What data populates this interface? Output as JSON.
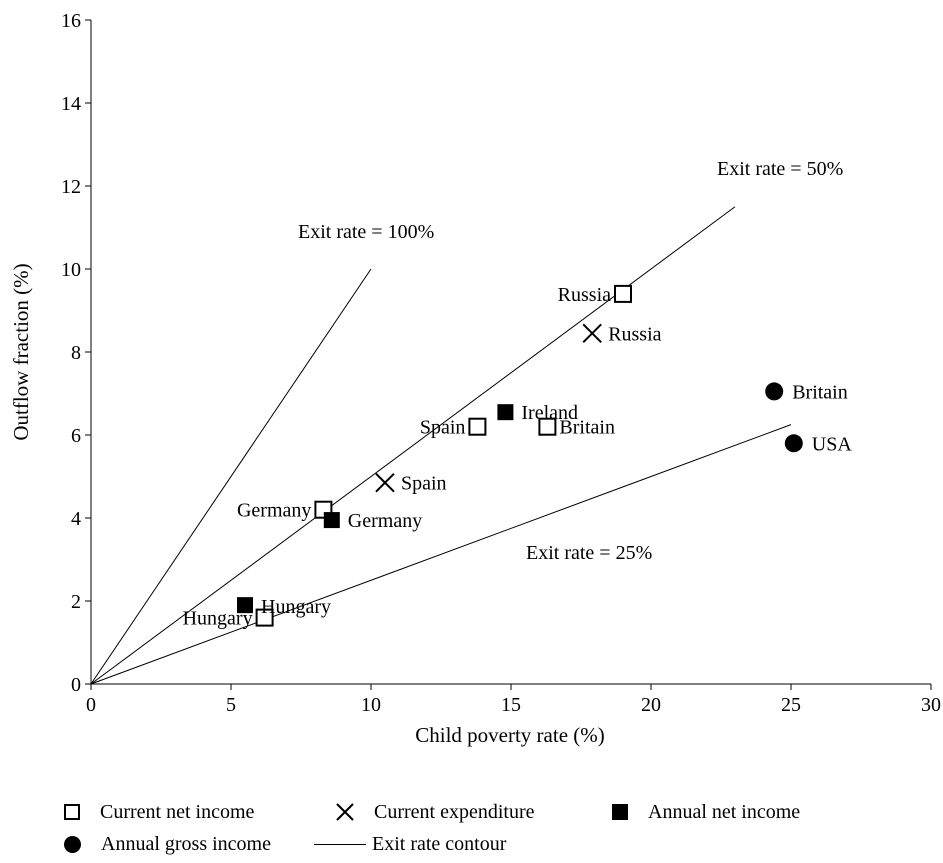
{
  "chart_data": {
    "type": "scatter",
    "title": "",
    "xlabel": "Child poverty rate (%)",
    "ylabel": "Outflow fraction (%)",
    "xlim": [
      0,
      30
    ],
    "ylim": [
      0,
      16
    ],
    "x_ticks": [
      "0",
      "5",
      "10",
      "15",
      "20",
      "25",
      "30"
    ],
    "y_ticks": [
      "0",
      "2",
      "4",
      "6",
      "8",
      "10",
      "12",
      "14",
      "16"
    ],
    "grid": false,
    "legend_position": "bottom",
    "series": [
      {
        "name": "Current net income",
        "marker": "open-square",
        "points": [
          {
            "label": "Russia",
            "x": 19.0,
            "y": 9.4
          },
          {
            "label": "Spain",
            "x": 13.8,
            "y": 6.2
          },
          {
            "label": "Britain",
            "x": 16.3,
            "y": 6.2
          },
          {
            "label": "Germany",
            "x": 8.3,
            "y": 4.2
          },
          {
            "label": "Hungary",
            "x": 6.2,
            "y": 1.6
          }
        ]
      },
      {
        "name": "Current expenditure",
        "marker": "x",
        "points": [
          {
            "label": "Russia",
            "x": 17.9,
            "y": 8.45
          },
          {
            "label": "Spain",
            "x": 10.5,
            "y": 4.85
          }
        ]
      },
      {
        "name": "Annual net income",
        "marker": "filled-square",
        "points": [
          {
            "label": "Ireland",
            "x": 14.8,
            "y": 6.55
          },
          {
            "label": "Germany",
            "x": 8.6,
            "y": 3.95
          },
          {
            "label": "Hungary",
            "x": 5.5,
            "y": 1.9
          }
        ]
      },
      {
        "name": "Annual gross income",
        "marker": "filled-circle",
        "points": [
          {
            "label": "Britain",
            "x": 24.4,
            "y": 7.05
          },
          {
            "label": "USA",
            "x": 25.1,
            "y": 5.8
          }
        ]
      }
    ],
    "contours": {
      "name": "Exit rate contour",
      "lines": [
        {
          "label": "Exit rate = 100%",
          "x": [
            0,
            10
          ],
          "y": [
            0,
            10
          ]
        },
        {
          "label": "Exit rate = 50%",
          "x": [
            0,
            23
          ],
          "y": [
            0,
            11.5
          ]
        },
        {
          "label": "Exit rate = 25%",
          "x": [
            0,
            25
          ],
          "y": [
            0,
            6.25
          ]
        }
      ]
    }
  }
}
